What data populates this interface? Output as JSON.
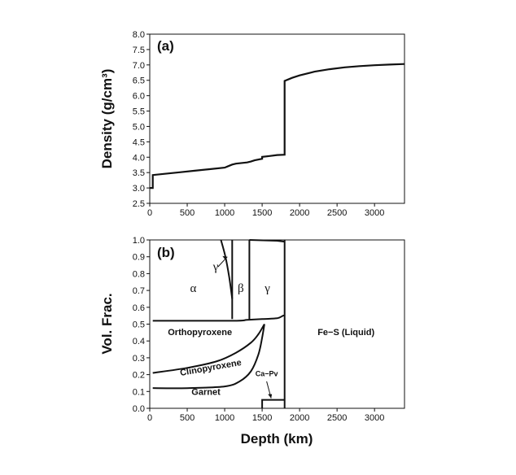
{
  "chart_data": [
    {
      "type": "line",
      "panel_label": "(a)",
      "xlabel": "",
      "ylabel": "Density (g/cm³)",
      "xlim": [
        0,
        3400
      ],
      "ylim": [
        2.5,
        8.0
      ],
      "x_ticks": [
        0,
        500,
        1000,
        1500,
        2000,
        2500,
        3000
      ],
      "y_ticks": [
        2.5,
        3.0,
        3.5,
        4.0,
        4.5,
        5.0,
        5.5,
        6.0,
        6.5,
        7.0,
        7.5,
        8.0
      ],
      "series": [
        {
          "x": [
            0,
            40,
            40,
            200,
            400,
            600,
            800,
            1000,
            1050,
            1100,
            1150,
            1300,
            1350,
            1400,
            1500,
            1500,
            1600,
            1700,
            1800,
            1800,
            1900,
            2000,
            2200,
            2400,
            2600,
            2800,
            3000,
            3200,
            3400
          ],
          "y": [
            3.0,
            3.0,
            3.42,
            3.46,
            3.51,
            3.56,
            3.61,
            3.66,
            3.71,
            3.76,
            3.79,
            3.83,
            3.86,
            3.9,
            3.95,
            4.01,
            4.04,
            4.07,
            4.08,
            6.48,
            6.58,
            6.66,
            6.78,
            6.86,
            6.92,
            6.96,
            6.99,
            7.01,
            7.03
          ]
        }
      ]
    },
    {
      "type": "area",
      "panel_label": "(b)",
      "xlabel": "Depth (km)",
      "ylabel": "Vol. Frac.",
      "xlim": [
        0,
        3400
      ],
      "ylim": [
        0,
        1.0
      ],
      "x_ticks": [
        0,
        500,
        1000,
        1500,
        2000,
        2500,
        3000
      ],
      "y_ticks": [
        0.0,
        0.1,
        0.2,
        0.3,
        0.4,
        0.5,
        0.6,
        0.7,
        0.8,
        0.9,
        1.0
      ],
      "boundaries": [
        {
          "name": "garnet-top",
          "x": [
            40,
            500,
            1000,
            1200,
            1350,
            1450,
            1500,
            1530
          ],
          "y": [
            0.12,
            0.12,
            0.13,
            0.16,
            0.22,
            0.32,
            0.42,
            0.5
          ]
        },
        {
          "name": "clinopyroxene-top",
          "x": [
            40,
            500,
            900,
            1150,
            1350,
            1450,
            1530
          ],
          "y": [
            0.21,
            0.24,
            0.28,
            0.33,
            0.39,
            0.44,
            0.5
          ]
        },
        {
          "name": "orthopyroxene-top",
          "x": [
            40,
            1100,
            1300,
            1500,
            1700,
            1780,
            1800
          ],
          "y": [
            0.52,
            0.52,
            0.525,
            0.53,
            0.535,
            0.55,
            0.55
          ]
        },
        {
          "name": "olivine-alpha-gamma",
          "x": [
            950,
            1010,
            1060,
            1100
          ],
          "y": [
            1.0,
            0.9,
            0.78,
            0.65
          ]
        },
        {
          "name": "beta-left",
          "x": [
            1100,
            1100
          ],
          "y": [
            0.53,
            1.0
          ]
        },
        {
          "name": "beta-right",
          "x": [
            1330,
            1330
          ],
          "y": [
            0.53,
            1.0
          ]
        },
        {
          "name": "gamma-top",
          "x": [
            1330,
            1700,
            1800
          ],
          "y": [
            1.0,
            0.995,
            0.99
          ]
        },
        {
          "name": "ca-pv-top",
          "x": [
            1500,
            1500,
            1800
          ],
          "y": [
            0.0,
            0.05,
            0.05
          ]
        },
        {
          "name": "core-boundary",
          "x": [
            1800,
            1800
          ],
          "y": [
            0.0,
            1.0
          ]
        }
      ],
      "annotations": [
        {
          "text": "α",
          "x": 580,
          "y": 0.69,
          "style": "greek"
        },
        {
          "text": "γ",
          "x": 880,
          "y": 0.82,
          "style": "greek"
        },
        {
          "text": "β",
          "x": 1215,
          "y": 0.69,
          "style": "greek"
        },
        {
          "text": "γ",
          "x": 1570,
          "y": 0.69,
          "style": "greek"
        },
        {
          "text": "Orthopyroxene",
          "x": 670,
          "y": 0.435,
          "style": "region"
        },
        {
          "text": "Clinopyroxene",
          "x": 820,
          "y": 0.225,
          "style": "region",
          "rotate": -10
        },
        {
          "text": "Garnet",
          "x": 750,
          "y": 0.08,
          "style": "region"
        },
        {
          "text": "Ca−Pv",
          "x": 1560,
          "y": 0.19,
          "style": "small"
        },
        {
          "text": "Fe−S (Liquid)",
          "x": 2620,
          "y": 0.435,
          "style": "region"
        }
      ]
    }
  ]
}
